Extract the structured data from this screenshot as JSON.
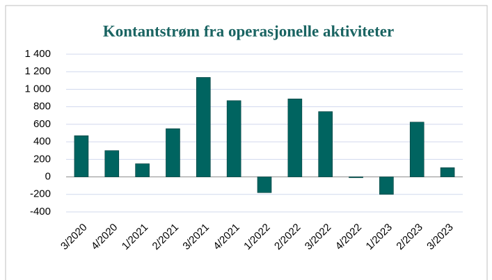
{
  "chart_data": {
    "type": "bar",
    "title": "Kontantstrøm fra operasjonelle aktiviteter",
    "categories": [
      "3/2020",
      "4/2020",
      "1/2021",
      "2/2021",
      "3/2021",
      "4/2021",
      "1/2022",
      "2/2022",
      "3/2022",
      "4/2022",
      "1/2023",
      "2/2023",
      "3/2023"
    ],
    "values": [
      470,
      300,
      150,
      550,
      1135,
      870,
      -180,
      890,
      745,
      -10,
      -200,
      625,
      105
    ],
    "color": "#006460",
    "ylim": [
      -400,
      1400
    ],
    "yticks": [
      -400,
      -200,
      0,
      200,
      400,
      600,
      800,
      {
        "value": 1000,
        "label": "1 000"
      },
      {
        "value": 1200,
        "label": "1 200"
      },
      {
        "value": 1400,
        "label": "1 400"
      }
    ],
    "grid": true
  }
}
